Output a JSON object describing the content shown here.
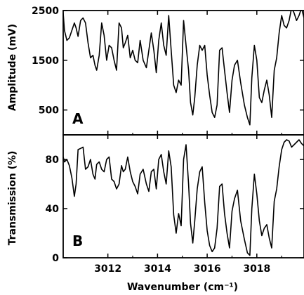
{
  "chart_data": [
    {
      "type": "line",
      "panel_label": "A",
      "ylabel": "Amplitude (mV)",
      "xlim": [
        3010.2,
        3019.9
      ],
      "ylim": [
        0,
        2500
      ],
      "yticks": [
        500,
        1500,
        2500
      ],
      "ytick_labels": [
        "500",
        "1500",
        "2500"
      ],
      "series": [
        {
          "x": [
            3010.2,
            3010.25,
            3010.35,
            3010.45,
            3010.55,
            3010.65,
            3010.72,
            3010.8,
            3010.9,
            3011.0,
            3011.1,
            3011.2,
            3011.3,
            3011.4,
            3011.48,
            3011.55,
            3011.65,
            3011.75,
            3011.85,
            3011.95,
            3012.05,
            3012.15,
            3012.25,
            3012.35,
            3012.45,
            3012.55,
            3012.62,
            3012.7,
            3012.8,
            3012.9,
            3013.0,
            3013.1,
            3013.2,
            3013.3,
            3013.42,
            3013.55,
            3013.65,
            3013.75,
            3013.85,
            3013.95,
            3014.05,
            3014.15,
            3014.25,
            3014.35,
            3014.45,
            3014.55,
            3014.65,
            3014.75,
            3014.85,
            3014.95,
            3015.05,
            3015.15,
            3015.25,
            3015.33,
            3015.42,
            3015.5,
            3015.6,
            3015.7,
            3015.8,
            3015.9,
            3016.0,
            3016.1,
            3016.2,
            3016.3,
            3016.4,
            3016.5,
            3016.6,
            3016.7,
            3016.8,
            3016.9,
            3017.0,
            3017.1,
            3017.22,
            3017.35,
            3017.5,
            3017.62,
            3017.72,
            3017.8,
            3017.9,
            3018.0,
            3018.1,
            3018.2,
            3018.3,
            3018.4,
            3018.5,
            3018.6,
            3018.7,
            3018.8,
            3018.9,
            3019.0,
            3019.1,
            3019.2,
            3019.3,
            3019.4,
            3019.5,
            3019.6,
            3019.7,
            3019.8,
            3019.9
          ],
          "y": [
            2450,
            2100,
            1900,
            1950,
            2100,
            2250,
            2150,
            1980,
            2300,
            2350,
            2250,
            1850,
            1550,
            1600,
            1400,
            1300,
            1600,
            2250,
            2000,
            1500,
            1800,
            1750,
            1500,
            1300,
            2250,
            2150,
            1750,
            1850,
            2000,
            1550,
            1700,
            1500,
            1450,
            1900,
            1500,
            1350,
            1700,
            2050,
            1700,
            1250,
            1900,
            2250,
            1800,
            1600,
            2400,
            1700,
            1000,
            850,
            1100,
            1000,
            2300,
            1800,
            1300,
            650,
            400,
            750,
            1400,
            1800,
            1700,
            1800,
            1200,
            800,
            450,
            350,
            600,
            1700,
            1750,
            1300,
            850,
            450,
            1100,
            1400,
            1500,
            1050,
            600,
            350,
            200,
            1150,
            1800,
            1500,
            750,
            650,
            900,
            1100,
            800,
            350,
            1300,
            1550,
            2050,
            2400,
            2200,
            2150,
            2300,
            2550,
            2450,
            2300,
            2400,
            2550,
            2350
          ]
        }
      ]
    },
    {
      "type": "line",
      "panel_label": "B",
      "xlabel": "Wavenumber (cm⁻¹)",
      "ylabel": "Transmission (%)",
      "xlim": [
        3010.2,
        3019.9
      ],
      "ylim": [
        0,
        100
      ],
      "xticks": [
        3012,
        3014,
        3016,
        3018
      ],
      "xtick_labels": [
        "3012",
        "3014",
        "3016",
        "3018"
      ],
      "yticks": [
        0,
        40,
        80
      ],
      "ytick_labels": [
        "0",
        "40",
        "80"
      ],
      "series": [
        {
          "x": [
            3010.2,
            3010.25,
            3010.35,
            3010.45,
            3010.55,
            3010.65,
            3010.72,
            3010.8,
            3010.9,
            3011.0,
            3011.1,
            3011.2,
            3011.3,
            3011.4,
            3011.48,
            3011.55,
            3011.65,
            3011.75,
            3011.85,
            3011.95,
            3012.05,
            3012.15,
            3012.25,
            3012.35,
            3012.45,
            3012.55,
            3012.62,
            3012.7,
            3012.8,
            3012.9,
            3013.0,
            3013.1,
            3013.2,
            3013.3,
            3013.42,
            3013.55,
            3013.65,
            3013.75,
            3013.85,
            3013.95,
            3014.05,
            3014.15,
            3014.25,
            3014.35,
            3014.45,
            3014.55,
            3014.65,
            3014.75,
            3014.85,
            3014.95,
            3015.05,
            3015.15,
            3015.25,
            3015.33,
            3015.42,
            3015.5,
            3015.6,
            3015.7,
            3015.8,
            3015.9,
            3016.0,
            3016.1,
            3016.2,
            3016.3,
            3016.4,
            3016.5,
            3016.6,
            3016.7,
            3016.8,
            3016.9,
            3017.0,
            3017.1,
            3017.22,
            3017.35,
            3017.5,
            3017.62,
            3017.72,
            3017.8,
            3017.9,
            3018.0,
            3018.1,
            3018.2,
            3018.3,
            3018.4,
            3018.5,
            3018.6,
            3018.7,
            3018.8,
            3018.9,
            3019.0,
            3019.1,
            3019.2,
            3019.3,
            3019.4,
            3019.5,
            3019.6,
            3019.7,
            3019.8,
            3019.9
          ],
          "y": [
            82,
            78,
            80,
            75,
            65,
            50,
            60,
            88,
            89,
            90,
            72,
            74,
            80,
            68,
            64,
            76,
            78,
            72,
            70,
            80,
            82,
            64,
            62,
            56,
            60,
            75,
            70,
            72,
            82,
            70,
            62,
            58,
            52,
            68,
            72,
            60,
            54,
            70,
            72,
            56,
            80,
            84,
            70,
            60,
            87,
            74,
            35,
            20,
            36,
            26,
            80,
            92,
            60,
            28,
            12,
            30,
            56,
            70,
            74,
            45,
            22,
            10,
            5,
            8,
            24,
            58,
            60,
            36,
            20,
            8,
            38,
            48,
            55,
            30,
            15,
            4,
            2,
            40,
            68,
            52,
            30,
            18,
            24,
            27,
            16,
            8,
            46,
            56,
            74,
            88,
            94,
            96,
            95,
            90,
            92,
            94,
            96,
            93,
            91
          ]
        }
      ]
    }
  ]
}
